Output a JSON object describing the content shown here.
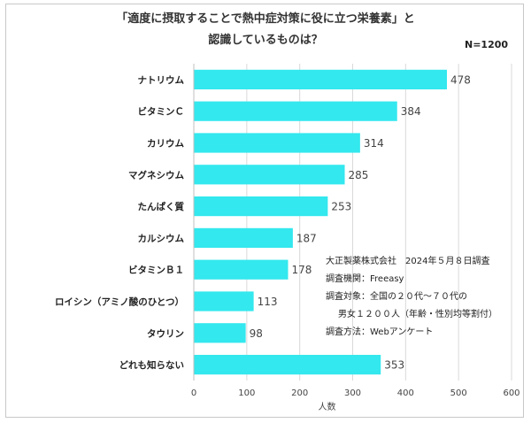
{
  "chart_data": {
    "type": "bar",
    "orientation": "horizontal",
    "title": [
      "「適度に摂取することで熱中症対策に役に立つ栄養素」と",
      "認識しているものは？"
    ],
    "sample_note": "N=1200",
    "categories": [
      "ナトリウム",
      "ビタミンＣ",
      "カリウム",
      "マグネシウム",
      "たんぱく質",
      "カルシウム",
      "ビタミンＢ１",
      "ロイシン（アミノ酸のひとつ）",
      "タウリン",
      "どれも知らない"
    ],
    "values": [
      478,
      384,
      314,
      285,
      253,
      187,
      178,
      113,
      98,
      353
    ],
    "xlabel": "人数",
    "xlim": [
      0,
      600
    ],
    "xticks": [
      0,
      100,
      200,
      300,
      400,
      500,
      600
    ],
    "grid": true,
    "legend": "none",
    "bar_color": "#33e8ee",
    "source": [
      "大正製薬株式会社　2024年５月８日調査",
      "調査機関：Freeasy",
      "調査対象：全国の２０代〜７０代の",
      "男女１２００人（年齢・性別均等割付）",
      "調査方法：Webアンケート"
    ]
  }
}
